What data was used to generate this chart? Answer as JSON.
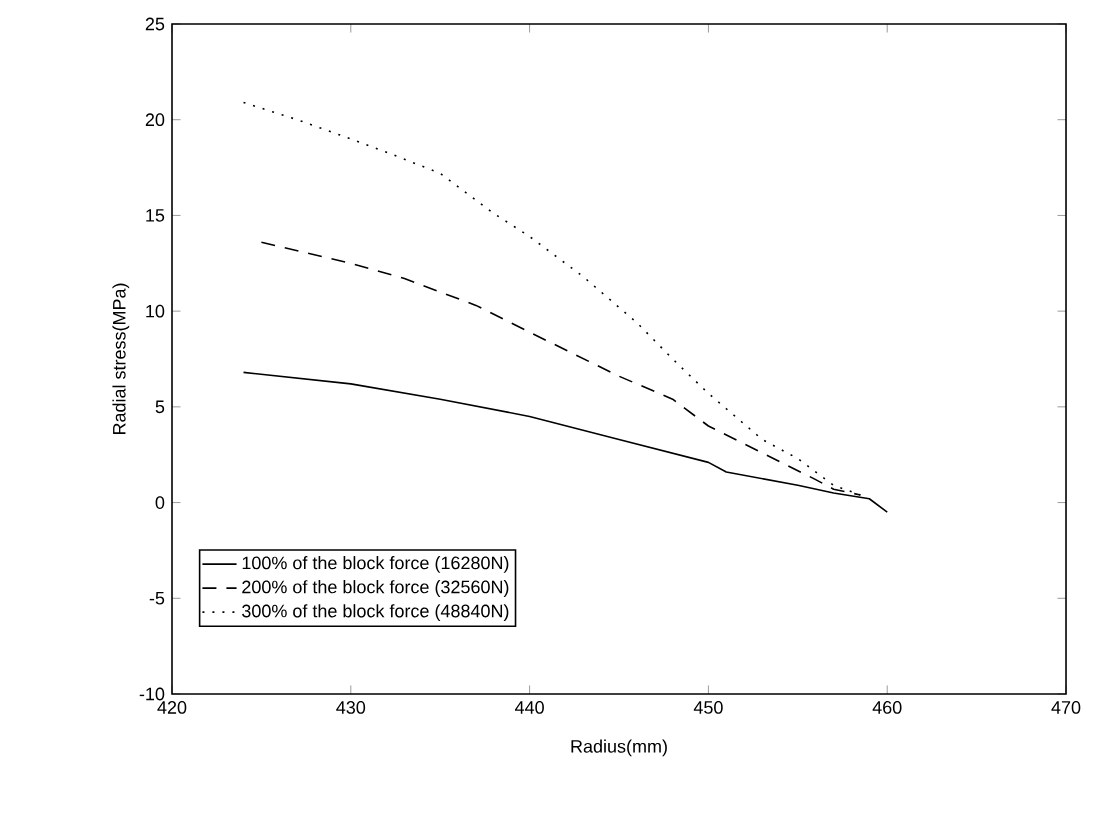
{
  "chart_data": {
    "type": "line",
    "xlabel": "Radius(mm)",
    "ylabel": "Radial stress(MPa)",
    "xlim": [
      420,
      470
    ],
    "ylim": [
      -10,
      25
    ],
    "xticks": [
      420,
      430,
      440,
      450,
      460,
      470
    ],
    "yticks": [
      -10,
      -5,
      0,
      5,
      10,
      15,
      20,
      25
    ],
    "legend": "bottom left",
    "grid": false,
    "marker": "none",
    "series": [
      {
        "name": "100% of the block force (16280N)",
        "color": "#000000",
        "line_style": "solid",
        "x": [
          424,
          430,
          435,
          440,
          445,
          450,
          451,
          455,
          457,
          459,
          460
        ],
        "values": [
          6.8,
          6.2,
          5.4,
          4.5,
          3.3,
          2.1,
          1.6,
          0.9,
          0.5,
          0.2,
          -0.5
        ]
      },
      {
        "name": "200% of the block force (32560N)",
        "color": "#000000",
        "line_style": "dashed",
        "x": [
          425,
          430,
          433,
          437,
          440,
          445,
          448,
          450,
          453,
          456,
          457,
          458.5
        ],
        "values": [
          13.6,
          12.5,
          11.7,
          10.3,
          8.9,
          6.6,
          5.4,
          4.0,
          2.6,
          1.2,
          0.7,
          0.4
        ]
      },
      {
        "name": "300% of the block force (48840N)",
        "color": "#000000",
        "line_style": "dotted",
        "x": [
          424,
          427,
          430,
          432,
          435,
          438,
          440,
          443,
          446,
          448,
          450,
          453,
          455,
          457,
          458.5
        ],
        "values": [
          20.9,
          20.0,
          19.0,
          18.3,
          17.2,
          15.1,
          13.9,
          11.8,
          9.4,
          7.5,
          5.7,
          3.3,
          2.3,
          0.9,
          0.4
        ]
      }
    ]
  }
}
